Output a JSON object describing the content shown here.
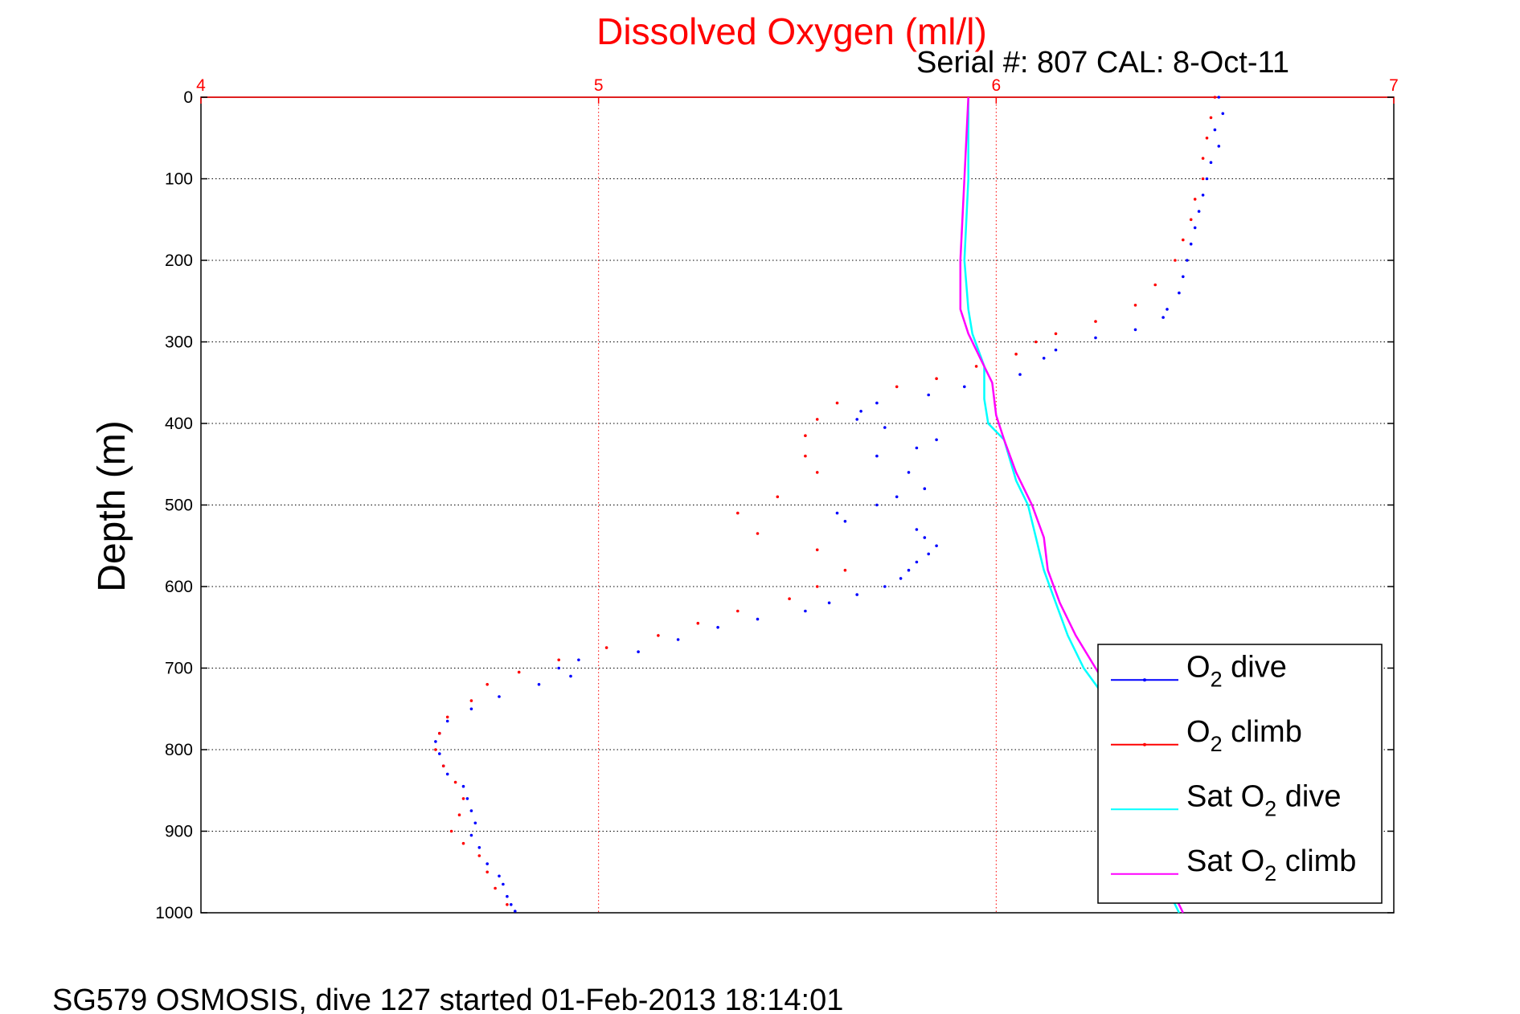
{
  "chart_data": {
    "type": "scatter",
    "title": "Dissolved Oxygen (ml/l)",
    "subtitle": "Serial #: 807  CAL: 8-Oct-11",
    "ylabel": "Depth (m)",
    "xlim": [
      4,
      7
    ],
    "ylim": [
      0,
      1000
    ],
    "y_reversed": true,
    "x_axis_position": "top",
    "x_ticks": [
      4,
      5,
      6,
      7
    ],
    "y_ticks": [
      0,
      100,
      200,
      300,
      400,
      500,
      600,
      700,
      800,
      900,
      1000
    ],
    "grid": true,
    "legend_position": "bottom-right",
    "footer": "SG579 OSMOSIS, dive 127 started 01-Feb-2013 18:14:01",
    "colors": {
      "title": "#ff0000",
      "x_axis": "#ff0000",
      "grid": "#000000",
      "legend_box": "#000000"
    },
    "series": [
      {
        "name": "O2 dive",
        "legend_main": "O",
        "legend_sub": "2",
        "legend_rest": " dive",
        "style": "dots",
        "color": "#0000ff",
        "points": [
          [
            6.56,
            0
          ],
          [
            6.57,
            20
          ],
          [
            6.55,
            40
          ],
          [
            6.56,
            60
          ],
          [
            6.54,
            80
          ],
          [
            6.53,
            100
          ],
          [
            6.52,
            120
          ],
          [
            6.51,
            140
          ],
          [
            6.5,
            160
          ],
          [
            6.49,
            180
          ],
          [
            6.48,
            200
          ],
          [
            6.47,
            220
          ],
          [
            6.46,
            240
          ],
          [
            6.43,
            260
          ],
          [
            6.42,
            270
          ],
          [
            6.35,
            285
          ],
          [
            6.25,
            295
          ],
          [
            6.15,
            310
          ],
          [
            6.12,
            320
          ],
          [
            6.06,
            340
          ],
          [
            5.92,
            355
          ],
          [
            5.83,
            365
          ],
          [
            5.7,
            375
          ],
          [
            5.66,
            385
          ],
          [
            5.65,
            395
          ],
          [
            5.72,
            405
          ],
          [
            5.85,
            420
          ],
          [
            5.8,
            430
          ],
          [
            5.7,
            440
          ],
          [
            5.78,
            460
          ],
          [
            5.82,
            480
          ],
          [
            5.75,
            490
          ],
          [
            5.7,
            500
          ],
          [
            5.6,
            510
          ],
          [
            5.62,
            520
          ],
          [
            5.8,
            530
          ],
          [
            5.82,
            540
          ],
          [
            5.85,
            550
          ],
          [
            5.83,
            560
          ],
          [
            5.8,
            570
          ],
          [
            5.78,
            580
          ],
          [
            5.76,
            590
          ],
          [
            5.72,
            600
          ],
          [
            5.65,
            610
          ],
          [
            5.58,
            620
          ],
          [
            5.52,
            630
          ],
          [
            5.4,
            640
          ],
          [
            5.3,
            650
          ],
          [
            5.2,
            665
          ],
          [
            5.1,
            680
          ],
          [
            4.95,
            690
          ],
          [
            4.9,
            700
          ],
          [
            4.93,
            710
          ],
          [
            4.85,
            720
          ],
          [
            4.75,
            735
          ],
          [
            4.68,
            750
          ],
          [
            4.62,
            765
          ],
          [
            4.6,
            780
          ],
          [
            4.59,
            790
          ],
          [
            4.6,
            805
          ],
          [
            4.61,
            820
          ],
          [
            4.62,
            830
          ],
          [
            4.66,
            845
          ],
          [
            4.67,
            860
          ],
          [
            4.68,
            875
          ],
          [
            4.69,
            890
          ],
          [
            4.68,
            905
          ],
          [
            4.7,
            920
          ],
          [
            4.72,
            940
          ],
          [
            4.75,
            955
          ],
          [
            4.76,
            965
          ],
          [
            4.77,
            980
          ],
          [
            4.78,
            990
          ],
          [
            4.79,
            998
          ]
        ]
      },
      {
        "name": "O2 climb",
        "legend_main": "O",
        "legend_sub": "2",
        "legend_rest": " climb",
        "style": "dots",
        "color": "#ff0000",
        "points": [
          [
            6.55,
            0
          ],
          [
            6.54,
            25
          ],
          [
            6.53,
            50
          ],
          [
            6.52,
            75
          ],
          [
            6.52,
            100
          ],
          [
            6.5,
            125
          ],
          [
            6.49,
            150
          ],
          [
            6.47,
            175
          ],
          [
            6.45,
            200
          ],
          [
            6.4,
            230
          ],
          [
            6.35,
            255
          ],
          [
            6.25,
            275
          ],
          [
            6.15,
            290
          ],
          [
            6.1,
            300
          ],
          [
            6.05,
            315
          ],
          [
            5.95,
            330
          ],
          [
            5.85,
            345
          ],
          [
            5.75,
            355
          ],
          [
            5.6,
            375
          ],
          [
            5.55,
            395
          ],
          [
            5.52,
            415
          ],
          [
            5.52,
            440
          ],
          [
            5.55,
            460
          ],
          [
            5.45,
            490
          ],
          [
            5.35,
            510
          ],
          [
            5.4,
            535
          ],
          [
            5.55,
            555
          ],
          [
            5.62,
            580
          ],
          [
            5.55,
            600
          ],
          [
            5.48,
            615
          ],
          [
            5.35,
            630
          ],
          [
            5.25,
            645
          ],
          [
            5.15,
            660
          ],
          [
            5.02,
            675
          ],
          [
            4.9,
            690
          ],
          [
            4.8,
            705
          ],
          [
            4.72,
            720
          ],
          [
            4.68,
            740
          ],
          [
            4.62,
            760
          ],
          [
            4.6,
            780
          ],
          [
            4.59,
            800
          ],
          [
            4.61,
            820
          ],
          [
            4.64,
            840
          ],
          [
            4.66,
            860
          ],
          [
            4.65,
            880
          ],
          [
            4.63,
            900
          ],
          [
            4.66,
            915
          ],
          [
            4.7,
            930
          ],
          [
            4.72,
            950
          ],
          [
            4.74,
            970
          ],
          [
            4.77,
            990
          ]
        ]
      },
      {
        "name": "Sat O2 dive",
        "legend_main": "Sat O",
        "legend_sub": "2",
        "legend_rest": " dive",
        "style": "line",
        "color": "#00ffff",
        "points": [
          [
            5.93,
            0
          ],
          [
            5.93,
            100
          ],
          [
            5.92,
            200
          ],
          [
            5.93,
            260
          ],
          [
            5.94,
            290
          ],
          [
            5.97,
            330
          ],
          [
            5.97,
            370
          ],
          [
            5.98,
            400
          ],
          [
            6.02,
            420
          ],
          [
            6.05,
            470
          ],
          [
            6.08,
            500
          ],
          [
            6.1,
            540
          ],
          [
            6.12,
            580
          ],
          [
            6.15,
            620
          ],
          [
            6.18,
            660
          ],
          [
            6.22,
            700
          ],
          [
            6.28,
            740
          ],
          [
            6.33,
            780
          ],
          [
            6.37,
            830
          ],
          [
            6.4,
            880
          ],
          [
            6.42,
            930
          ],
          [
            6.43,
            970
          ],
          [
            6.46,
            1000
          ]
        ]
      },
      {
        "name": "Sat O2 climb",
        "legend_main": "Sat O",
        "legend_sub": "2",
        "legend_rest": " climb",
        "style": "line",
        "color": "#ff00ff",
        "points": [
          [
            5.93,
            0
          ],
          [
            5.92,
            100
          ],
          [
            5.91,
            200
          ],
          [
            5.91,
            260
          ],
          [
            5.93,
            290
          ],
          [
            5.96,
            320
          ],
          [
            5.99,
            350
          ],
          [
            6.0,
            390
          ],
          [
            6.02,
            420
          ],
          [
            6.05,
            460
          ],
          [
            6.09,
            500
          ],
          [
            6.12,
            540
          ],
          [
            6.13,
            580
          ],
          [
            6.16,
            620
          ],
          [
            6.2,
            660
          ],
          [
            6.25,
            700
          ],
          [
            6.3,
            740
          ],
          [
            6.34,
            780
          ],
          [
            6.38,
            830
          ],
          [
            6.41,
            880
          ],
          [
            6.43,
            930
          ],
          [
            6.44,
            970
          ],
          [
            6.47,
            1000
          ]
        ]
      }
    ]
  }
}
